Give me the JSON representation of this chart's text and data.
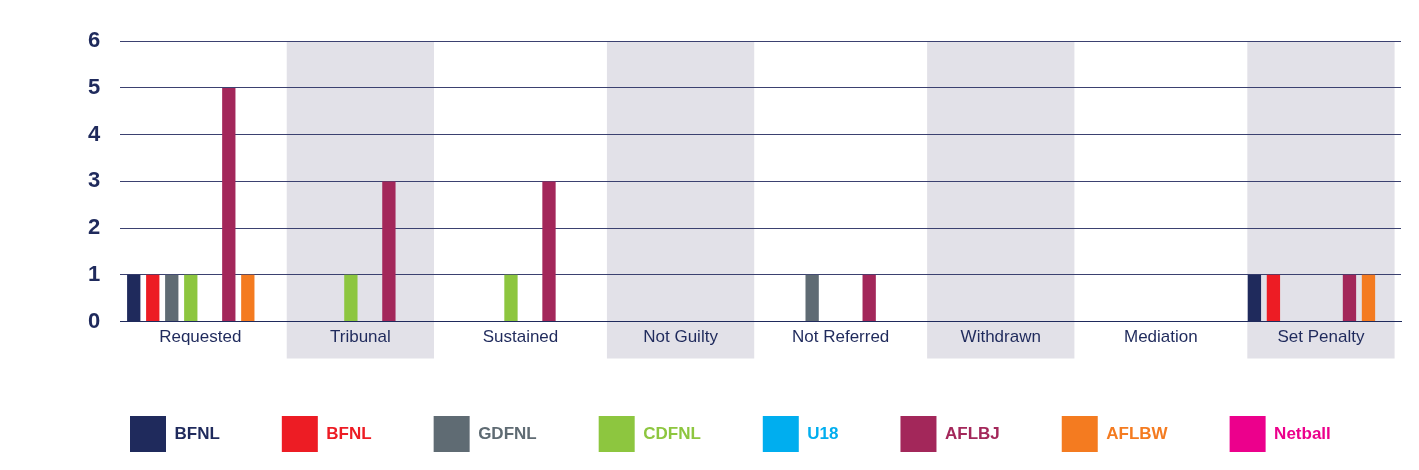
{
  "chart_data": {
    "type": "bar",
    "categories": [
      "Requested",
      "Tribunal",
      "Sustained",
      "Not Guilty",
      "Not Referred",
      "Withdrawn",
      "Mediation",
      "Set Penalty"
    ],
    "series": [
      {
        "name": "BFNL",
        "color": "#1f2a5c",
        "values": [
          1,
          0,
          0,
          0,
          0,
          0,
          0,
          1
        ]
      },
      {
        "name": "BFNL",
        "color": "#ed1c24",
        "values": [
          1,
          0,
          0,
          0,
          0,
          0,
          0,
          1
        ]
      },
      {
        "name": "GDFNL",
        "color": "#5f6b73",
        "values": [
          1,
          0,
          0,
          0,
          1,
          0,
          0,
          0
        ]
      },
      {
        "name": "CDFNL",
        "color": "#8dc63f",
        "values": [
          1,
          1,
          1,
          0,
          0,
          0,
          0,
          0
        ]
      },
      {
        "name": "U18",
        "color": "#00aeef",
        "values": [
          0,
          0,
          0,
          0,
          0,
          0,
          0,
          0
        ]
      },
      {
        "name": "AFLBJ",
        "color": "#a3275a",
        "values": [
          5,
          3,
          3,
          0,
          1,
          0,
          0,
          1
        ]
      },
      {
        "name": "AFLBW",
        "color": "#f47b20",
        "values": [
          1,
          0,
          0,
          0,
          0,
          0,
          0,
          1
        ]
      },
      {
        "name": "Netball",
        "color": "#ec008c",
        "values": [
          0,
          0,
          0,
          0,
          0,
          0,
          0,
          0
        ]
      }
    ],
    "ylim": [
      0,
      6
    ],
    "yticks": [
      0,
      1,
      2,
      3,
      4,
      5,
      6
    ],
    "grid": "y",
    "legend": "bottom",
    "bands": [
      {
        "axis": "x",
        "from": "Tribunal",
        "to": "Tribunal",
        "color": "#e2e1e8"
      },
      {
        "axis": "x",
        "from": "Not Guilty",
        "to": "Not Guilty",
        "color": "#e2e1e8"
      },
      {
        "axis": "x",
        "from": "Withdrawn",
        "to": "Withdrawn",
        "color": "#e2e1e8"
      },
      {
        "axis": "x",
        "from": "Set Penalty",
        "to": "Set Penalty",
        "color": "#e2e1e8"
      }
    ]
  }
}
